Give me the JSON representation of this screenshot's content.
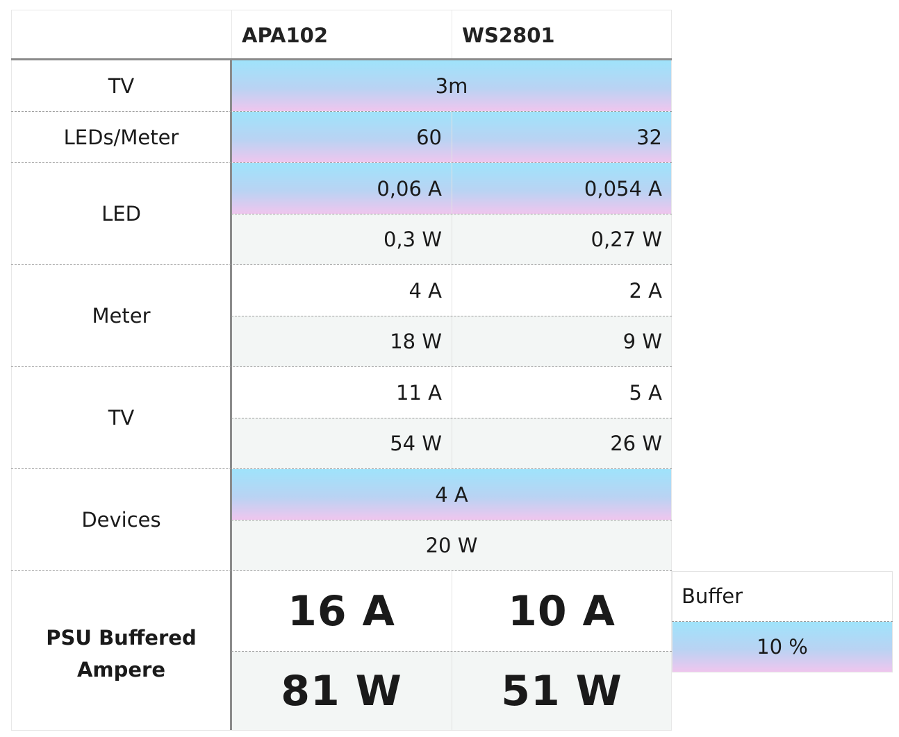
{
  "columns": {
    "corner": "",
    "col1": "APA102",
    "col2": "WS2801"
  },
  "rows": {
    "tv": {
      "label": "TV",
      "value": "3m"
    },
    "leds_per_meter": {
      "label": "LEDs/Meter",
      "apa102": "60",
      "ws2801": "32"
    },
    "led": {
      "label": "LED",
      "apa102_a": "0,06 A",
      "ws2801_a": "0,054 A",
      "apa102_w": "0,3 W",
      "ws2801_w": "0,27 W"
    },
    "meter": {
      "label": "Meter",
      "apa102_a": "4 A",
      "ws2801_a": "2 A",
      "apa102_w": "18 W",
      "ws2801_w": "9 W"
    },
    "tv_total": {
      "label": "TV",
      "apa102_a": "11 A",
      "ws2801_a": "5 A",
      "apa102_w": "54 W",
      "ws2801_w": "26 W"
    },
    "devices": {
      "label": "Devices",
      "a": "4 A",
      "w": "20 W"
    },
    "psu": {
      "label": "PSU Buffered Ampere",
      "apa102_a": "16 A",
      "ws2801_a": "10 A",
      "apa102_w": "81 W",
      "ws2801_w": "51 W"
    }
  },
  "buffer": {
    "label": "Buffer",
    "value": "10 %"
  },
  "colors": {
    "gradient_top": "#9fe3fb",
    "gradient_bottom": "#efc6ee",
    "computed_bg": "#f3f6f5",
    "separator": "#9a9a9a"
  }
}
